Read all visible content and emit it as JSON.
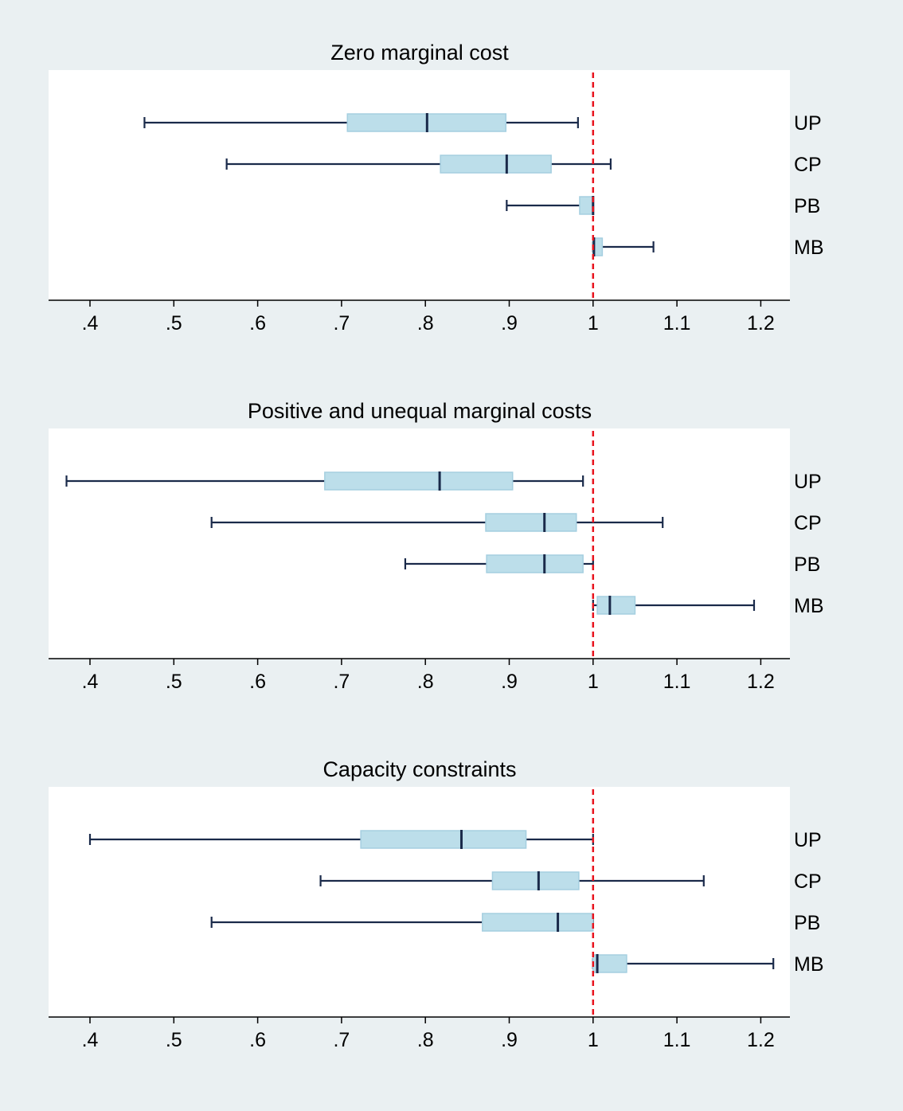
{
  "colors": {
    "page_background": "#eaf0f2",
    "plot_background": "#ffffff",
    "box_fill": "#bcdeea",
    "box_edge": "#a5cfe0",
    "whisker": "#1a2a4a",
    "reference_line": "#e8141e"
  },
  "chart_data": [
    {
      "type": "boxplot",
      "orientation": "horizontal",
      "title": "Zero marginal cost",
      "xlim": [
        0.35,
        1.23
      ],
      "x_ticks": [
        0.4,
        0.5,
        0.6,
        0.7,
        0.8,
        0.9,
        1.0,
        1.1,
        1.2
      ],
      "x_tick_labels": [
        ".4",
        ".5",
        ".6",
        ".7",
        ".8",
        ".9",
        "1",
        "1.1",
        "1.2"
      ],
      "reference_line": {
        "x": 1.0,
        "style": "dashed"
      },
      "category_labels_side": "right",
      "grid": false,
      "categories": [
        "UP",
        "CP",
        "PB",
        "MB"
      ],
      "boxes": [
        {
          "label": "UP",
          "whisker_low": 0.465,
          "q1": 0.707,
          "median": 0.802,
          "q3": 0.896,
          "whisker_high": 0.982
        },
        {
          "label": "CP",
          "whisker_low": 0.563,
          "q1": 0.818,
          "median": 0.897,
          "q3": 0.95,
          "whisker_high": 1.021
        },
        {
          "label": "PB",
          "whisker_low": 0.897,
          "q1": 0.984,
          "median": 1.0,
          "q3": 1.0,
          "whisker_high": 1.0
        },
        {
          "label": "MB",
          "whisker_low": 1.0,
          "q1": 1.0,
          "median": 1.001,
          "q3": 1.011,
          "whisker_high": 1.072
        }
      ]
    },
    {
      "type": "boxplot",
      "orientation": "horizontal",
      "title": "Positive and unequal marginal costs",
      "xlim": [
        0.35,
        1.23
      ],
      "x_ticks": [
        0.4,
        0.5,
        0.6,
        0.7,
        0.8,
        0.9,
        1.0,
        1.1,
        1.2
      ],
      "x_tick_labels": [
        ".4",
        ".5",
        ".6",
        ".7",
        ".8",
        ".9",
        "1",
        "1.1",
        "1.2"
      ],
      "reference_line": {
        "x": 1.0,
        "style": "dashed"
      },
      "category_labels_side": "right",
      "grid": false,
      "categories": [
        "UP",
        "CP",
        "PB",
        "MB"
      ],
      "boxes": [
        {
          "label": "UP",
          "whisker_low": 0.372,
          "q1": 0.68,
          "median": 0.817,
          "q3": 0.904,
          "whisker_high": 0.988
        },
        {
          "label": "CP",
          "whisker_low": 0.545,
          "q1": 0.872,
          "median": 0.942,
          "q3": 0.98,
          "whisker_high": 1.083
        },
        {
          "label": "PB",
          "whisker_low": 0.776,
          "q1": 0.873,
          "median": 0.942,
          "q3": 0.988,
          "whisker_high": 1.0
        },
        {
          "label": "MB",
          "whisker_low": 1.0,
          "q1": 1.005,
          "median": 1.02,
          "q3": 1.05,
          "whisker_high": 1.192
        }
      ]
    },
    {
      "type": "boxplot",
      "orientation": "horizontal",
      "title": "Capacity constraints",
      "xlim": [
        0.35,
        1.23
      ],
      "x_ticks": [
        0.4,
        0.5,
        0.6,
        0.7,
        0.8,
        0.9,
        1.0,
        1.1,
        1.2
      ],
      "x_tick_labels": [
        ".4",
        ".5",
        ".6",
        ".7",
        ".8",
        ".9",
        "1",
        "1.1",
        "1.2"
      ],
      "reference_line": {
        "x": 1.0,
        "style": "dashed"
      },
      "category_labels_side": "right",
      "grid": false,
      "categories": [
        "UP",
        "CP",
        "PB",
        "MB"
      ],
      "boxes": [
        {
          "label": "UP",
          "whisker_low": 0.4,
          "q1": 0.723,
          "median": 0.843,
          "q3": 0.92,
          "whisker_high": 1.0
        },
        {
          "label": "CP",
          "whisker_low": 0.675,
          "q1": 0.88,
          "median": 0.935,
          "q3": 0.983,
          "whisker_high": 1.132
        },
        {
          "label": "PB",
          "whisker_low": 0.545,
          "q1": 0.868,
          "median": 0.958,
          "q3": 1.0,
          "whisker_high": 1.0
        },
        {
          "label": "MB",
          "whisker_low": 1.0,
          "q1": 1.0,
          "median": 1.005,
          "q3": 1.04,
          "whisker_high": 1.215
        }
      ]
    }
  ]
}
